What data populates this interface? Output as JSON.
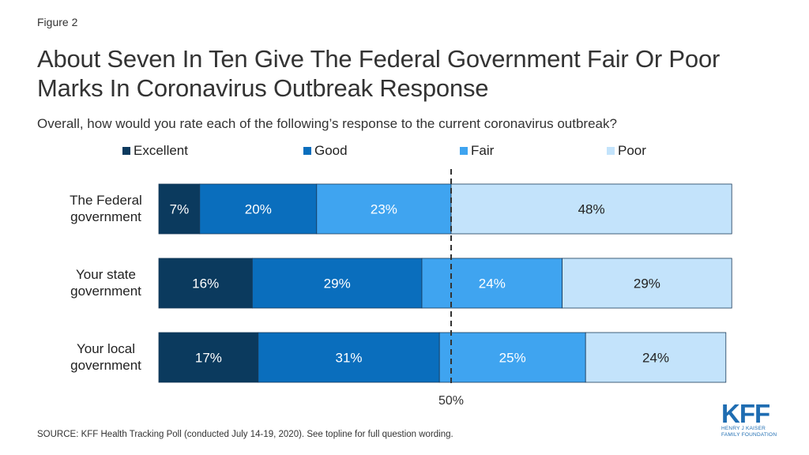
{
  "figure_label": "Figure 2",
  "title": "About Seven In Ten Give The Federal Government Fair Or Poor Marks In Coronavirus Outbreak Response",
  "subtitle": "Overall, how would you rate each of the following’s response to the current coronavirus outbreak?",
  "source": "SOURCE: KFF Health Tracking Poll (conducted July 14-19, 2020). See topline for full question wording.",
  "logo": {
    "main": "KFF",
    "line1": "HENRY J KAISER",
    "line2": "FAMILY FOUNDATION"
  },
  "colors": {
    "Excellent": "#0b3a5e",
    "Good": "#0a6ebd",
    "Fair": "#3fa4f0",
    "Poor": "#c3e3fb"
  },
  "chart_data": {
    "type": "bar",
    "orientation": "horizontal",
    "stacked": true,
    "categories": [
      "The Federal government",
      "Your state government",
      "Your local government"
    ],
    "category_lines": [
      [
        "The Federal",
        "government"
      ],
      [
        "Your state",
        "government"
      ],
      [
        "Your local",
        "government"
      ]
    ],
    "series": [
      {
        "name": "Excellent",
        "values": [
          7,
          16,
          17
        ],
        "labels": [
          "7%",
          "16%",
          "17%"
        ]
      },
      {
        "name": "Good",
        "values": [
          20,
          29,
          31
        ],
        "labels": [
          "20%",
          "29%",
          "31%"
        ]
      },
      {
        "name": "Fair",
        "values": [
          23,
          24,
          25
        ],
        "labels": [
          "23%",
          "24%",
          "25%"
        ]
      },
      {
        "name": "Poor",
        "values": [
          48,
          29,
          24
        ],
        "labels": [
          "48%",
          "29%",
          "24%"
        ]
      }
    ],
    "reference_line": {
      "value": 50,
      "label": "50%"
    },
    "xlim": [
      0,
      100
    ],
    "legend_position": "top",
    "grid": false
  }
}
